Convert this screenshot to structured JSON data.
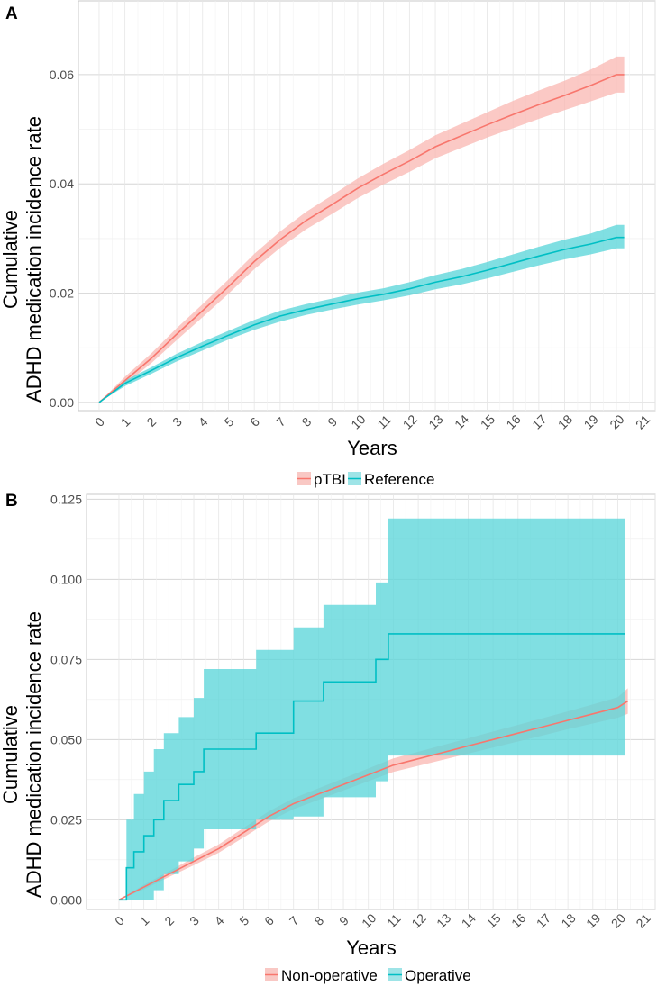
{
  "chart_data": [
    {
      "panel": "A",
      "type": "line",
      "xlabel": "Years",
      "ylabel_lines": [
        "Cumulative",
        "ADHD medication incidence rate"
      ],
      "xlim": [
        -0.8,
        21.5
      ],
      "ylim": [
        -0.0015,
        0.0735
      ],
      "y_ticks": [
        0.0,
        0.02,
        0.04,
        0.06
      ],
      "y_tick_labels": [
        "0.00",
        "0.02",
        "0.04",
        "0.06"
      ],
      "x_ticks": [
        0,
        1,
        2,
        3,
        4,
        5,
        6,
        7,
        8,
        9,
        10,
        11,
        12,
        13,
        14,
        15,
        16,
        17,
        18,
        19,
        20,
        21
      ],
      "x_tick_labels": [
        "0",
        "1",
        "2",
        "3",
        "4",
        "5",
        "6",
        "7",
        "8",
        "9",
        "10",
        "11",
        "12",
        "13",
        "14",
        "15",
        "16",
        "17",
        "18",
        "19",
        "20",
        "21"
      ],
      "legend": {
        "position": "bottom",
        "entries": [
          {
            "label": "pTBI",
            "color": "#F8766D"
          },
          {
            "label": "Reference",
            "color": "#00BFC4"
          }
        ]
      },
      "series": [
        {
          "name": "pTBI",
          "color": "#F8766D",
          "x": [
            0,
            1,
            2,
            3,
            4,
            5,
            6,
            7,
            8,
            9,
            10,
            11,
            12,
            13,
            14,
            15,
            16,
            17,
            18,
            19,
            20,
            20.3
          ],
          "y": [
            0,
            0.004,
            0.008,
            0.0125,
            0.0168,
            0.0212,
            0.0258,
            0.0298,
            0.0333,
            0.0362,
            0.0392,
            0.0418,
            0.0442,
            0.0468,
            0.0488,
            0.0508,
            0.0527,
            0.0545,
            0.0562,
            0.058,
            0.06,
            0.06
          ],
          "lower": [
            0,
            0.0033,
            0.0071,
            0.0114,
            0.0156,
            0.0199,
            0.0244,
            0.0283,
            0.0317,
            0.0345,
            0.0374,
            0.0399,
            0.0422,
            0.0447,
            0.0466,
            0.0485,
            0.0502,
            0.0519,
            0.0535,
            0.0551,
            0.0567,
            0.0567
          ],
          "upper": [
            0,
            0.0047,
            0.0089,
            0.0136,
            0.018,
            0.0225,
            0.0272,
            0.0313,
            0.0349,
            0.0379,
            0.041,
            0.0437,
            0.0462,
            0.0489,
            0.051,
            0.0531,
            0.0552,
            0.0571,
            0.0589,
            0.0609,
            0.0633,
            0.0633
          ]
        },
        {
          "name": "Reference",
          "color": "#00BFC4",
          "x": [
            0,
            1,
            2,
            3,
            4,
            5,
            6,
            7,
            8,
            9,
            10,
            11,
            12,
            13,
            14,
            15,
            16,
            17,
            18,
            19,
            20,
            20.3
          ],
          "y": [
            0,
            0.0035,
            0.0058,
            0.0082,
            0.0103,
            0.0123,
            0.0142,
            0.0158,
            0.017,
            0.018,
            0.019,
            0.0198,
            0.0208,
            0.022,
            0.023,
            0.0242,
            0.0255,
            0.0268,
            0.028,
            0.029,
            0.0302,
            0.0302
          ],
          "lower": [
            0,
            0.003,
            0.0052,
            0.0075,
            0.0095,
            0.0115,
            0.0133,
            0.0148,
            0.016,
            0.017,
            0.0179,
            0.0187,
            0.0196,
            0.0207,
            0.0216,
            0.0227,
            0.0239,
            0.0251,
            0.0262,
            0.0271,
            0.0282,
            0.0282
          ],
          "upper": [
            0,
            0.004,
            0.0064,
            0.0089,
            0.0111,
            0.0131,
            0.0151,
            0.0168,
            0.018,
            0.019,
            0.0201,
            0.0209,
            0.022,
            0.0233,
            0.0244,
            0.0257,
            0.0271,
            0.0285,
            0.0298,
            0.0309,
            0.0325,
            0.0325
          ]
        }
      ]
    },
    {
      "panel": "B",
      "type": "line",
      "xlabel": "Years",
      "ylabel_lines": [
        "Cumulative",
        "ADHD medication incidence rate"
      ],
      "xlim": [
        -1.3,
        21.5
      ],
      "ylim": [
        -0.003,
        0.1265
      ],
      "y_ticks": [
        0.0,
        0.025,
        0.05,
        0.075,
        0.1,
        0.125
      ],
      "y_tick_labels": [
        "0.000",
        "0.025",
        "0.050",
        "0.075",
        "0.100",
        "0.125"
      ],
      "x_ticks": [
        0,
        1,
        2,
        3,
        4,
        5,
        6,
        7,
        8,
        9,
        10,
        11,
        12,
        13,
        14,
        15,
        16,
        17,
        18,
        19,
        20,
        21
      ],
      "x_tick_labels": [
        "0",
        "1",
        "2",
        "3",
        "4",
        "5",
        "6",
        "7",
        "8",
        "9",
        "10",
        "11",
        "12",
        "13",
        "14",
        "15",
        "16",
        "17",
        "18",
        "19",
        "20",
        "21"
      ],
      "legend": {
        "position": "bottom",
        "entries": [
          {
            "label": "Non-operative",
            "color": "#F8766D"
          },
          {
            "label": "Operative",
            "color": "#00BFC4"
          }
        ]
      },
      "series": [
        {
          "name": "Non-operative",
          "color": "#F8766D",
          "step": false,
          "x": [
            0,
            1,
            2,
            3,
            4,
            5,
            6,
            7,
            8,
            9,
            10,
            11,
            12,
            13,
            14,
            15,
            16,
            17,
            18,
            19,
            20,
            20.4
          ],
          "y": [
            0,
            0.004,
            0.008,
            0.012,
            0.016,
            0.021,
            0.026,
            0.03,
            0.033,
            0.036,
            0.039,
            0.042,
            0.044,
            0.046,
            0.048,
            0.05,
            0.052,
            0.054,
            0.056,
            0.058,
            0.06,
            0.062
          ],
          "lower": [
            0,
            0.0033,
            0.0071,
            0.0108,
            0.0147,
            0.0195,
            0.0244,
            0.0283,
            0.0312,
            0.0341,
            0.037,
            0.0399,
            0.0418,
            0.0437,
            0.0456,
            0.0475,
            0.0494,
            0.0513,
            0.0532,
            0.055,
            0.0568,
            0.058
          ],
          "upper": [
            0,
            0.0047,
            0.0089,
            0.0132,
            0.0173,
            0.0225,
            0.0276,
            0.0317,
            0.0348,
            0.0379,
            0.041,
            0.0441,
            0.0462,
            0.0483,
            0.0504,
            0.0525,
            0.0546,
            0.0567,
            0.0588,
            0.061,
            0.0632,
            0.066
          ]
        },
        {
          "name": "Operative",
          "color": "#00BFC4",
          "step": true,
          "x": [
            0,
            0.3,
            0.6,
            1.0,
            1.4,
            1.8,
            2.4,
            3.0,
            3.4,
            5.5,
            7.0,
            8.2,
            10.3,
            10.8,
            20.3
          ],
          "y": [
            0,
            0.01,
            0.015,
            0.02,
            0.025,
            0.031,
            0.036,
            0.04,
            0.047,
            0.052,
            0.062,
            0.068,
            0.075,
            0.083,
            0.083
          ],
          "lower": [
            0,
            0,
            0,
            0,
            0.003,
            0.008,
            0.012,
            0.016,
            0.022,
            0.025,
            0.026,
            0.032,
            0.037,
            0.045,
            0.045
          ],
          "upper": [
            0,
            0.025,
            0.033,
            0.04,
            0.047,
            0.052,
            0.057,
            0.063,
            0.072,
            0.078,
            0.085,
            0.092,
            0.099,
            0.119,
            0.119
          ]
        }
      ]
    }
  ]
}
